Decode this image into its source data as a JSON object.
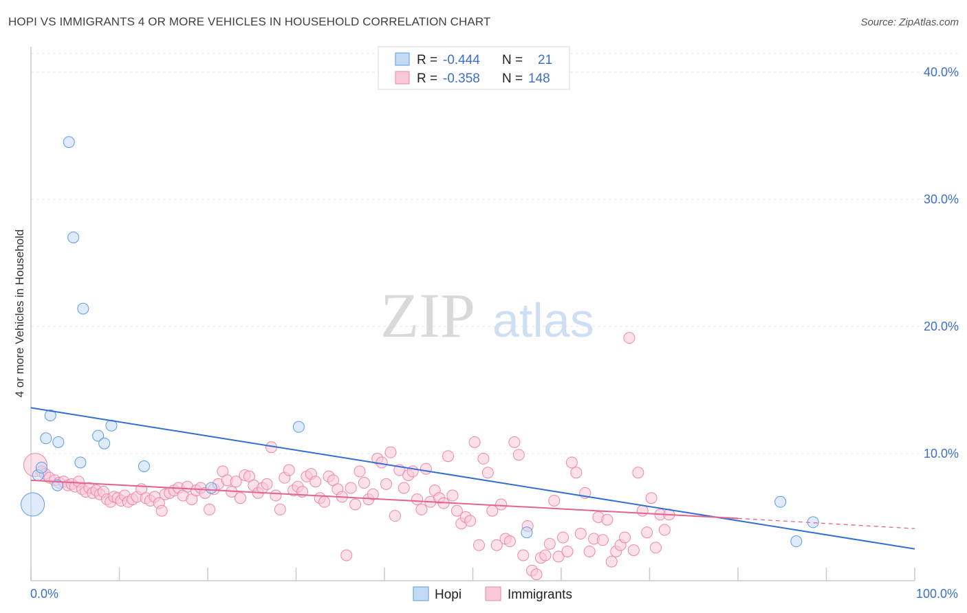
{
  "title": "HOPI VS IMMIGRANTS 4 OR MORE VEHICLES IN HOUSEHOLD CORRELATION CHART",
  "source": "Source: ZipAtlas.com",
  "watermark": {
    "zip": "ZIP",
    "atlas": "atlas"
  },
  "legend_top": [
    {
      "r_label": "R =",
      "r_value": "-0.444",
      "n_label": "N =",
      "n_value": "21",
      "color": "#aecbf3"
    },
    {
      "r_label": "R =",
      "r_value": "-0.358",
      "n_label": "N =",
      "n_value": "148",
      "color": "#f7b8cc"
    }
  ],
  "legend_bottom": [
    {
      "label": "Hopi",
      "color": "#aecbf3"
    },
    {
      "label": "Immigrants",
      "color": "#f7b8cc"
    }
  ],
  "chart_data": {
    "type": "scatter",
    "ylabel": "4 or more Vehicles in Household",
    "xlim": [
      0,
      100
    ],
    "ylim": [
      0,
      42
    ],
    "x_tick_labels": [
      {
        "v": 0,
        "label": "0.0%"
      },
      {
        "v": 100,
        "label": "100.0%"
      }
    ],
    "y_tick_labels": [
      {
        "v": 10,
        "label": "10.0%"
      },
      {
        "v": 20,
        "label": "20.0%"
      },
      {
        "v": 30,
        "label": "30.0%"
      },
      {
        "v": 40,
        "label": "40.0%"
      }
    ],
    "grid": true,
    "series": [
      {
        "name": "Hopi",
        "color": "#5b9ae6",
        "fill": "#c4dbf6",
        "trend": {
          "x0": 0,
          "y0": 13.6,
          "x1": 100,
          "y1": 2.5,
          "color": "#2f6fd1"
        },
        "points": [
          {
            "x": 0.2,
            "y": 6.0,
            "big": true
          },
          {
            "x": 0.8,
            "y": 8.3
          },
          {
            "x": 1.2,
            "y": 8.9
          },
          {
            "x": 1.7,
            "y": 11.2
          },
          {
            "x": 2.2,
            "y": 13.0
          },
          {
            "x": 3.0,
            "y": 7.5
          },
          {
            "x": 3.1,
            "y": 10.9
          },
          {
            "x": 4.3,
            "y": 34.5
          },
          {
            "x": 4.8,
            "y": 27.0
          },
          {
            "x": 5.6,
            "y": 9.3
          },
          {
            "x": 5.9,
            "y": 21.4
          },
          {
            "x": 7.6,
            "y": 11.4
          },
          {
            "x": 8.3,
            "y": 10.8
          },
          {
            "x": 9.1,
            "y": 12.2
          },
          {
            "x": 12.8,
            "y": 9.0
          },
          {
            "x": 20.4,
            "y": 7.3
          },
          {
            "x": 30.3,
            "y": 12.1
          },
          {
            "x": 56.1,
            "y": 3.8
          },
          {
            "x": 84.8,
            "y": 6.2
          },
          {
            "x": 86.6,
            "y": 3.1
          },
          {
            "x": 88.5,
            "y": 4.6
          }
        ]
      },
      {
        "name": "Immigrants",
        "color": "#ee86a8",
        "fill": "#f9c9d8",
        "trend": {
          "x0": 0,
          "y0": 7.9,
          "x1": 80,
          "y1": 4.9,
          "color": "#e3628e"
        },
        "trend_dashed": {
          "x0": 80,
          "y0": 4.9,
          "x1": 100,
          "y1": 4.1
        },
        "points": [
          {
            "x": 0.5,
            "y": 9.1,
            "big": true
          },
          {
            "x": 1.2,
            "y": 8.6
          },
          {
            "x": 1.6,
            "y": 8.4
          },
          {
            "x": 2.1,
            "y": 8.1
          },
          {
            "x": 2.7,
            "y": 7.9
          },
          {
            "x": 3.2,
            "y": 7.7
          },
          {
            "x": 3.7,
            "y": 7.8
          },
          {
            "x": 4.2,
            "y": 7.5
          },
          {
            "x": 4.6,
            "y": 7.6
          },
          {
            "x": 5.0,
            "y": 7.4
          },
          {
            "x": 5.4,
            "y": 7.8
          },
          {
            "x": 5.8,
            "y": 7.2
          },
          {
            "x": 6.2,
            "y": 7.0
          },
          {
            "x": 6.6,
            "y": 7.3
          },
          {
            "x": 7.0,
            "y": 6.9
          },
          {
            "x": 7.4,
            "y": 7.1
          },
          {
            "x": 7.8,
            "y": 6.8
          },
          {
            "x": 8.2,
            "y": 7.0
          },
          {
            "x": 8.6,
            "y": 6.4
          },
          {
            "x": 9.0,
            "y": 6.2
          },
          {
            "x": 9.4,
            "y": 6.6
          },
          {
            "x": 9.8,
            "y": 6.5
          },
          {
            "x": 10.2,
            "y": 6.3
          },
          {
            "x": 10.6,
            "y": 6.7
          },
          {
            "x": 11.0,
            "y": 6.2
          },
          {
            "x": 11.5,
            "y": 6.4
          },
          {
            "x": 12.0,
            "y": 6.6
          },
          {
            "x": 12.5,
            "y": 7.2
          },
          {
            "x": 13.0,
            "y": 6.5
          },
          {
            "x": 13.5,
            "y": 6.3
          },
          {
            "x": 14.0,
            "y": 6.6
          },
          {
            "x": 14.5,
            "y": 6.1
          },
          {
            "x": 14.8,
            "y": 5.5
          },
          {
            "x": 15.2,
            "y": 6.8
          },
          {
            "x": 15.7,
            "y": 6.9
          },
          {
            "x": 16.2,
            "y": 7.1
          },
          {
            "x": 16.7,
            "y": 7.3
          },
          {
            "x": 17.2,
            "y": 6.7
          },
          {
            "x": 17.7,
            "y": 7.4
          },
          {
            "x": 18.2,
            "y": 6.4
          },
          {
            "x": 18.7,
            "y": 7.1
          },
          {
            "x": 19.2,
            "y": 7.3
          },
          {
            "x": 19.7,
            "y": 6.9
          },
          {
            "x": 20.2,
            "y": 5.6
          },
          {
            "x": 20.7,
            "y": 7.2
          },
          {
            "x": 21.2,
            "y": 7.6
          },
          {
            "x": 21.7,
            "y": 8.6
          },
          {
            "x": 22.2,
            "y": 7.9
          },
          {
            "x": 22.7,
            "y": 7.0
          },
          {
            "x": 23.2,
            "y": 7.8
          },
          {
            "x": 23.7,
            "y": 6.5
          },
          {
            "x": 24.2,
            "y": 8.3
          },
          {
            "x": 24.7,
            "y": 8.2
          },
          {
            "x": 25.2,
            "y": 7.5
          },
          {
            "x": 25.7,
            "y": 6.9
          },
          {
            "x": 26.2,
            "y": 7.3
          },
          {
            "x": 26.7,
            "y": 7.6
          },
          {
            "x": 27.2,
            "y": 10.5
          },
          {
            "x": 27.7,
            "y": 6.7
          },
          {
            "x": 28.2,
            "y": 5.6
          },
          {
            "x": 28.7,
            "y": 8.1
          },
          {
            "x": 29.2,
            "y": 8.7
          },
          {
            "x": 29.7,
            "y": 7.1
          },
          {
            "x": 30.2,
            "y": 7.4
          },
          {
            "x": 30.7,
            "y": 7.0
          },
          {
            "x": 31.2,
            "y": 8.2
          },
          {
            "x": 31.7,
            "y": 8.4
          },
          {
            "x": 32.2,
            "y": 7.8
          },
          {
            "x": 32.7,
            "y": 6.5
          },
          {
            "x": 33.2,
            "y": 6.2
          },
          {
            "x": 33.7,
            "y": 8.2
          },
          {
            "x": 34.2,
            "y": 7.9
          },
          {
            "x": 34.7,
            "y": 7.2
          },
          {
            "x": 35.2,
            "y": 6.6
          },
          {
            "x": 35.7,
            "y": 2.0
          },
          {
            "x": 36.2,
            "y": 7.3
          },
          {
            "x": 36.7,
            "y": 6.0
          },
          {
            "x": 37.2,
            "y": 8.6
          },
          {
            "x": 37.7,
            "y": 7.7
          },
          {
            "x": 38.2,
            "y": 6.4
          },
          {
            "x": 38.7,
            "y": 6.8
          },
          {
            "x": 39.2,
            "y": 9.6
          },
          {
            "x": 39.7,
            "y": 9.3
          },
          {
            "x": 40.2,
            "y": 7.6
          },
          {
            "x": 40.7,
            "y": 10.1
          },
          {
            "x": 41.2,
            "y": 5.1
          },
          {
            "x": 41.7,
            "y": 8.7
          },
          {
            "x": 42.2,
            "y": 7.3
          },
          {
            "x": 42.7,
            "y": 8.3
          },
          {
            "x": 43.2,
            "y": 8.6
          },
          {
            "x": 43.7,
            "y": 6.4
          },
          {
            "x": 44.2,
            "y": 5.6
          },
          {
            "x": 44.7,
            "y": 8.8
          },
          {
            "x": 45.2,
            "y": 6.2
          },
          {
            "x": 45.7,
            "y": 7.1
          },
          {
            "x": 46.2,
            "y": 6.5
          },
          {
            "x": 46.7,
            "y": 6.1
          },
          {
            "x": 47.2,
            "y": 9.8
          },
          {
            "x": 47.7,
            "y": 6.7
          },
          {
            "x": 48.2,
            "y": 5.5
          },
          {
            "x": 48.7,
            "y": 4.5
          },
          {
            "x": 49.2,
            "y": 5.0
          },
          {
            "x": 49.7,
            "y": 4.7
          },
          {
            "x": 50.2,
            "y": 10.9
          },
          {
            "x": 50.7,
            "y": 2.8
          },
          {
            "x": 51.2,
            "y": 9.6
          },
          {
            "x": 51.7,
            "y": 8.5
          },
          {
            "x": 52.2,
            "y": 5.5
          },
          {
            "x": 52.7,
            "y": 2.8
          },
          {
            "x": 53.2,
            "y": 6.0
          },
          {
            "x": 53.7,
            "y": 3.3
          },
          {
            "x": 54.2,
            "y": 3.1
          },
          {
            "x": 54.7,
            "y": 10.9
          },
          {
            "x": 55.2,
            "y": 9.9
          },
          {
            "x": 55.7,
            "y": 2.0
          },
          {
            "x": 56.2,
            "y": 4.3
          },
          {
            "x": 56.7,
            "y": 0.8
          },
          {
            "x": 57.2,
            "y": 0.5
          },
          {
            "x": 57.7,
            "y": 1.8
          },
          {
            "x": 58.2,
            "y": 2.0
          },
          {
            "x": 58.7,
            "y": 2.9
          },
          {
            "x": 59.2,
            "y": 6.3
          },
          {
            "x": 59.7,
            "y": 1.9
          },
          {
            "x": 60.2,
            "y": 3.4
          },
          {
            "x": 60.7,
            "y": 2.3
          },
          {
            "x": 61.2,
            "y": 9.3
          },
          {
            "x": 61.7,
            "y": 8.5
          },
          {
            "x": 62.2,
            "y": 3.7
          },
          {
            "x": 62.7,
            "y": 6.9
          },
          {
            "x": 63.2,
            "y": 2.3
          },
          {
            "x": 63.7,
            "y": 3.3
          },
          {
            "x": 64.2,
            "y": 5.0
          },
          {
            "x": 64.7,
            "y": 3.2
          },
          {
            "x": 65.2,
            "y": 4.8
          },
          {
            "x": 65.7,
            "y": 1.5
          },
          {
            "x": 66.2,
            "y": 2.3
          },
          {
            "x": 66.7,
            "y": 2.8
          },
          {
            "x": 67.2,
            "y": 3.4
          },
          {
            "x": 67.7,
            "y": 19.1
          },
          {
            "x": 68.2,
            "y": 2.4
          },
          {
            "x": 68.7,
            "y": 8.5
          },
          {
            "x": 69.2,
            "y": 5.5
          },
          {
            "x": 69.7,
            "y": 3.8
          },
          {
            "x": 70.2,
            "y": 6.5
          },
          {
            "x": 70.7,
            "y": 2.6
          },
          {
            "x": 71.2,
            "y": 5.2
          },
          {
            "x": 71.7,
            "y": 4.0
          },
          {
            "x": 72.2,
            "y": 5.2
          }
        ]
      }
    ]
  }
}
